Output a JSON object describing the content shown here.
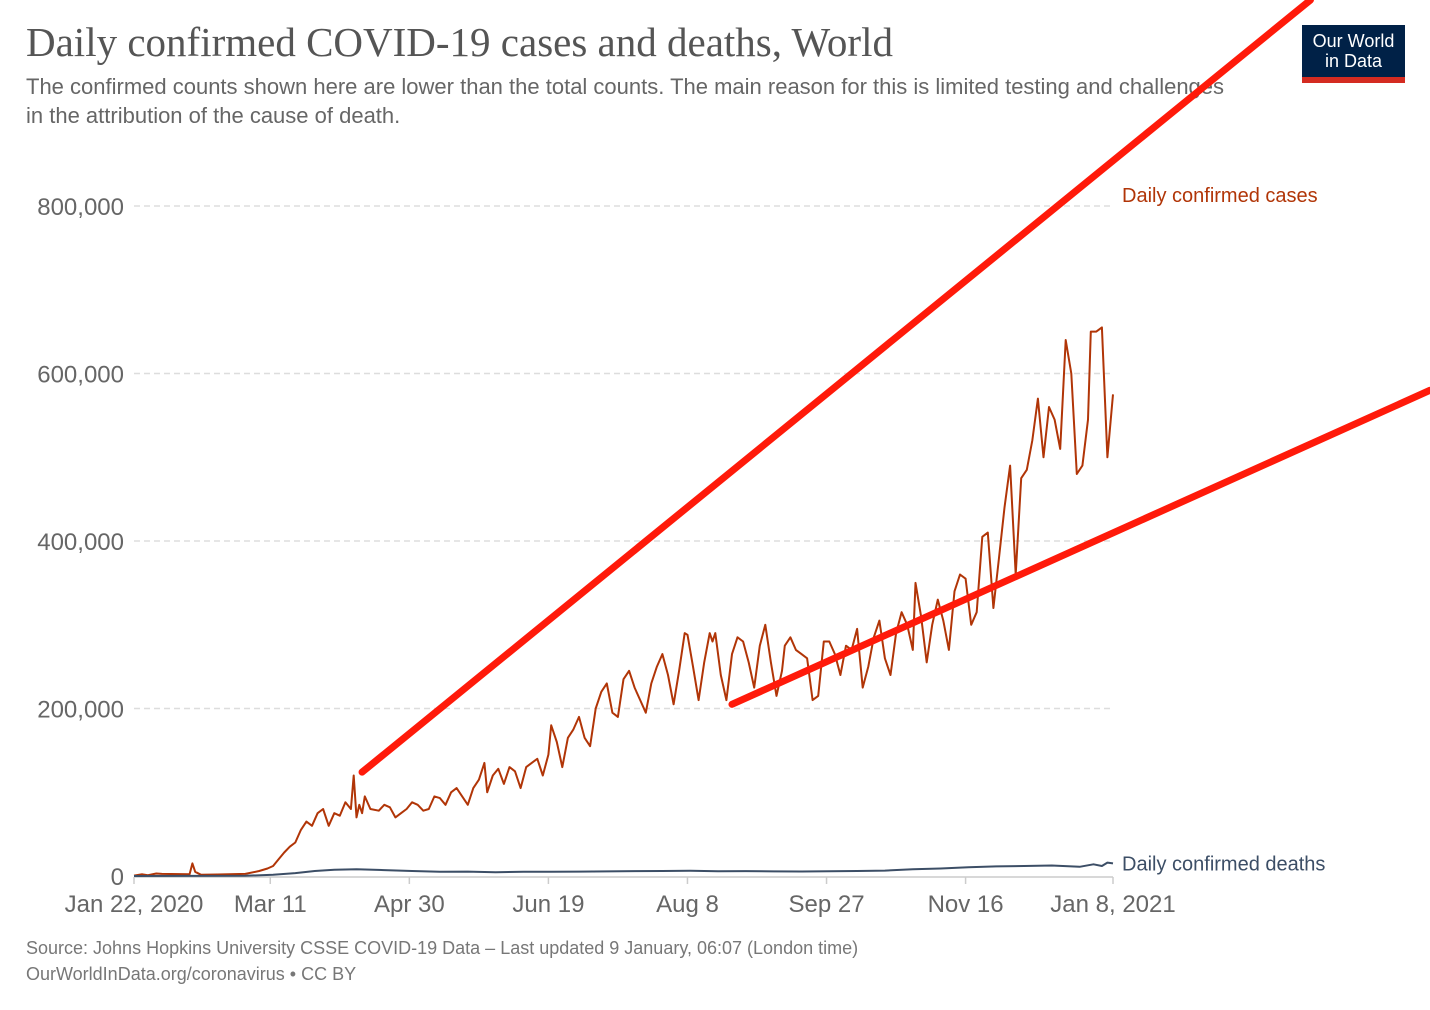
{
  "header": {
    "title": "Daily confirmed COVID-19 cases and deaths, World",
    "subtitle": "The confirmed counts shown here are lower than the total counts. The main reason for this is limited testing and challenges in the attribution of the cause of death.",
    "logo_line1": "Our World",
    "logo_line2": "in Data"
  },
  "footer": {
    "source": "Source: Johns Hopkins University CSSE COVID-19 Data – Last updated 9 January, 06:07 (London time)",
    "license": "OurWorldInData.org/coronavirus • CC BY"
  },
  "colors": {
    "cases": "#b13507",
    "deaths": "#3c4e66",
    "annotation": "#ff1a0a",
    "logo_bg": "#002147",
    "logo_bar": "#d42b21"
  },
  "chart_data": {
    "type": "line",
    "title": "Daily confirmed COVID-19 cases and deaths, World",
    "xlabel": "",
    "ylabel": "",
    "x_unit": "days since Jan 22, 2020",
    "xlim": [
      0,
      352
    ],
    "ylim": [
      0,
      800000
    ],
    "grid": true,
    "legend": "inline-right",
    "y_ticks": [
      {
        "value": 0,
        "label": "0"
      },
      {
        "value": 200000,
        "label": "200,000"
      },
      {
        "value": 400000,
        "label": "400,000"
      },
      {
        "value": 600000,
        "label": "600,000"
      },
      {
        "value": 800000,
        "label": "800,000"
      }
    ],
    "x_ticks": [
      {
        "day": 0,
        "label": "Jan 22, 2020"
      },
      {
        "day": 49,
        "label": "Mar 11"
      },
      {
        "day": 99,
        "label": "Apr 30"
      },
      {
        "day": 149,
        "label": "Jun 19"
      },
      {
        "day": 199,
        "label": "Aug 8"
      },
      {
        "day": 249,
        "label": "Sep 27"
      },
      {
        "day": 299,
        "label": "Nov 16"
      },
      {
        "day": 352,
        "label": "Jan 8, 2021"
      }
    ],
    "series": [
      {
        "name": "Daily confirmed cases",
        "color": "#b13507",
        "points": [
          [
            0,
            500
          ],
          [
            3,
            2000
          ],
          [
            5,
            1000
          ],
          [
            8,
            3000
          ],
          [
            10,
            2500
          ],
          [
            20,
            2200
          ],
          [
            21,
            15000
          ],
          [
            22,
            5000
          ],
          [
            24,
            1500
          ],
          [
            30,
            1800
          ],
          [
            40,
            2500
          ],
          [
            45,
            6000
          ],
          [
            48,
            9000
          ],
          [
            50,
            12000
          ],
          [
            52,
            20000
          ],
          [
            54,
            28000
          ],
          [
            56,
            35000
          ],
          [
            58,
            40000
          ],
          [
            60,
            55000
          ],
          [
            62,
            65000
          ],
          [
            64,
            60000
          ],
          [
            66,
            75000
          ],
          [
            68,
            80000
          ],
          [
            70,
            60000
          ],
          [
            72,
            75000
          ],
          [
            74,
            72000
          ],
          [
            76,
            88000
          ],
          [
            78,
            80000
          ],
          [
            79,
            120000
          ],
          [
            80,
            70000
          ],
          [
            81,
            85000
          ],
          [
            82,
            75000
          ],
          [
            83,
            95000
          ],
          [
            85,
            80000
          ],
          [
            88,
            78000
          ],
          [
            90,
            85000
          ],
          [
            92,
            82000
          ],
          [
            94,
            70000
          ],
          [
            96,
            75000
          ],
          [
            98,
            80000
          ],
          [
            100,
            88000
          ],
          [
            102,
            85000
          ],
          [
            104,
            78000
          ],
          [
            106,
            80000
          ],
          [
            108,
            95000
          ],
          [
            110,
            93000
          ],
          [
            112,
            85000
          ],
          [
            114,
            100000
          ],
          [
            116,
            105000
          ],
          [
            118,
            95000
          ],
          [
            120,
            85000
          ],
          [
            122,
            105000
          ],
          [
            124,
            115000
          ],
          [
            126,
            135000
          ],
          [
            127,
            100000
          ],
          [
            129,
            120000
          ],
          [
            131,
            128000
          ],
          [
            133,
            110000
          ],
          [
            135,
            130000
          ],
          [
            137,
            125000
          ],
          [
            139,
            105000
          ],
          [
            141,
            130000
          ],
          [
            143,
            135000
          ],
          [
            145,
            140000
          ],
          [
            147,
            120000
          ],
          [
            149,
            145000
          ],
          [
            150,
            180000
          ],
          [
            152,
            160000
          ],
          [
            154,
            130000
          ],
          [
            156,
            165000
          ],
          [
            158,
            175000
          ],
          [
            160,
            190000
          ],
          [
            162,
            165000
          ],
          [
            164,
            155000
          ],
          [
            166,
            200000
          ],
          [
            168,
            220000
          ],
          [
            170,
            230000
          ],
          [
            172,
            195000
          ],
          [
            174,
            190000
          ],
          [
            176,
            235000
          ],
          [
            178,
            245000
          ],
          [
            180,
            225000
          ],
          [
            182,
            210000
          ],
          [
            184,
            195000
          ],
          [
            186,
            230000
          ],
          [
            188,
            250000
          ],
          [
            190,
            265000
          ],
          [
            192,
            240000
          ],
          [
            194,
            205000
          ],
          [
            196,
            245000
          ],
          [
            198,
            290000
          ],
          [
            199,
            288000
          ],
          [
            201,
            250000
          ],
          [
            203,
            210000
          ],
          [
            205,
            255000
          ],
          [
            207,
            290000
          ],
          [
            208,
            280000
          ],
          [
            209,
            290000
          ],
          [
            211,
            240000
          ],
          [
            213,
            210000
          ],
          [
            215,
            265000
          ],
          [
            217,
            285000
          ],
          [
            219,
            280000
          ],
          [
            221,
            255000
          ],
          [
            223,
            225000
          ],
          [
            225,
            275000
          ],
          [
            227,
            300000
          ],
          [
            229,
            255000
          ],
          [
            231,
            215000
          ],
          [
            233,
            245000
          ],
          [
            234,
            275000
          ],
          [
            236,
            285000
          ],
          [
            238,
            270000
          ],
          [
            240,
            265000
          ],
          [
            242,
            260000
          ],
          [
            244,
            210000
          ],
          [
            246,
            215000
          ],
          [
            248,
            280000
          ],
          [
            250,
            280000
          ],
          [
            252,
            265000
          ],
          [
            254,
            240000
          ],
          [
            256,
            275000
          ],
          [
            258,
            270000
          ],
          [
            260,
            295000
          ],
          [
            262,
            225000
          ],
          [
            264,
            250000
          ],
          [
            266,
            285000
          ],
          [
            268,
            305000
          ],
          [
            270,
            260000
          ],
          [
            272,
            240000
          ],
          [
            274,
            290000
          ],
          [
            276,
            315000
          ],
          [
            278,
            300000
          ],
          [
            280,
            270000
          ],
          [
            281,
            350000
          ],
          [
            283,
            310000
          ],
          [
            285,
            255000
          ],
          [
            287,
            300000
          ],
          [
            289,
            330000
          ],
          [
            291,
            305000
          ],
          [
            293,
            270000
          ],
          [
            295,
            340000
          ],
          [
            297,
            360000
          ],
          [
            299,
            355000
          ],
          [
            301,
            300000
          ],
          [
            303,
            315000
          ],
          [
            305,
            405000
          ],
          [
            307,
            410000
          ],
          [
            309,
            320000
          ],
          [
            311,
            380000
          ],
          [
            313,
            440000
          ],
          [
            315,
            490000
          ],
          [
            317,
            360000
          ],
          [
            319,
            475000
          ],
          [
            321,
            485000
          ],
          [
            323,
            520000
          ],
          [
            325,
            570000
          ],
          [
            327,
            500000
          ],
          [
            329,
            560000
          ],
          [
            331,
            545000
          ],
          [
            333,
            510000
          ],
          [
            335,
            640000
          ],
          [
            337,
            600000
          ],
          [
            339,
            480000
          ],
          [
            341,
            490000
          ],
          [
            343,
            545000
          ],
          [
            344,
            650000
          ],
          [
            346,
            650000
          ],
          [
            348,
            655000
          ],
          [
            350,
            500000
          ],
          [
            352,
            575000
          ]
        ]
      },
      {
        "name": "Daily confirmed deaths",
        "color": "#3c4e66",
        "points": [
          [
            0,
            0
          ],
          [
            40,
            200
          ],
          [
            50,
            1500
          ],
          [
            58,
            3500
          ],
          [
            65,
            6000
          ],
          [
            72,
            7500
          ],
          [
            80,
            8000
          ],
          [
            90,
            7000
          ],
          [
            100,
            6000
          ],
          [
            110,
            5000
          ],
          [
            120,
            5200
          ],
          [
            130,
            4500
          ],
          [
            140,
            5000
          ],
          [
            150,
            5000
          ],
          [
            160,
            5300
          ],
          [
            170,
            5500
          ],
          [
            180,
            5800
          ],
          [
            190,
            6000
          ],
          [
            200,
            6200
          ],
          [
            210,
            5700
          ],
          [
            220,
            5800
          ],
          [
            230,
            5500
          ],
          [
            240,
            5400
          ],
          [
            250,
            5600
          ],
          [
            260,
            6000
          ],
          [
            270,
            6500
          ],
          [
            280,
            8000
          ],
          [
            290,
            9000
          ],
          [
            300,
            10500
          ],
          [
            310,
            11500
          ],
          [
            320,
            12000
          ],
          [
            330,
            12500
          ],
          [
            340,
            11000
          ],
          [
            345,
            14000
          ],
          [
            348,
            12000
          ],
          [
            350,
            16000
          ],
          [
            352,
            15000
          ]
        ]
      }
    ],
    "annotations": [
      {
        "type": "trend-line",
        "name": "upper-trend-line",
        "color": "#ff1a0a",
        "from": [
          82,
          124000
        ],
        "to": [
          423,
          1046000
        ]
      },
      {
        "type": "trend-line",
        "name": "lower-trend-line",
        "color": "#ff1a0a",
        "from": [
          215,
          205000
        ],
        "to": [
          466,
          580000
        ]
      }
    ]
  }
}
